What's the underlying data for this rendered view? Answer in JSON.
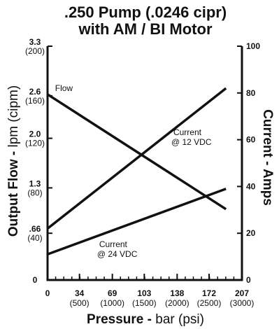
{
  "chart_data": {
    "type": "line",
    "title_line1": ".250 Pump (.0246 cipr)",
    "title_line2": "with AM / BI Motor",
    "xlabel_bold": "Pressure -",
    "xlabel_rest": " bar (psi)",
    "ylabel_left_bold": "Output Flow -",
    "ylabel_left_rest": " lpm (cipm)",
    "ylabel_right": "Current - Amps",
    "x_ticks": [
      {
        "value": 0,
        "bar": "0",
        "psi": ""
      },
      {
        "value": 34,
        "bar": "34",
        "psi": "(500)"
      },
      {
        "value": 69,
        "bar": "69",
        "psi": "(1000)"
      },
      {
        "value": 103,
        "bar": "103",
        "psi": "(1500)"
      },
      {
        "value": 138,
        "bar": "138",
        "psi": "(2000)"
      },
      {
        "value": 172,
        "bar": "172",
        "psi": "(2500)"
      },
      {
        "value": 207,
        "bar": "207",
        "psi": "(3000)"
      }
    ],
    "y_left_ticks": [
      {
        "value": 0,
        "lpm": "0",
        "cipm": ""
      },
      {
        "value": 0.66,
        "lpm": ".66",
        "cipm": "(40)"
      },
      {
        "value": 1.3,
        "lpm": "1.3",
        "cipm": "(80)"
      },
      {
        "value": 2.0,
        "lpm": "2.0",
        "cipm": "(120)"
      },
      {
        "value": 2.6,
        "lpm": "2.6",
        "cipm": "(160)"
      },
      {
        "value": 3.3,
        "lpm": "3.3",
        "cipm": "(200)"
      }
    ],
    "y_right_ticks": [
      0,
      20,
      40,
      60,
      80,
      100
    ],
    "xlim": [
      0,
      207
    ],
    "ylim_left": [
      0,
      3.3
    ],
    "ylim_right": [
      0,
      100
    ],
    "series": [
      {
        "name": "Flow",
        "axis": "left",
        "points": [
          [
            0,
            2.62
          ],
          [
            190,
            1.0
          ]
        ],
        "label_lines": [
          "Flow"
        ],
        "label_at": [
          8,
          2.67
        ]
      },
      {
        "name": "Current @ 12 VDC",
        "axis": "right",
        "points": [
          [
            0,
            22
          ],
          [
            190,
            82
          ]
        ],
        "label_lines": [
          "Current",
          "@ 12 VDC"
        ],
        "label_at": [
          134,
          62
        ]
      },
      {
        "name": "Current @ 24 VDC",
        "axis": "right",
        "points": [
          [
            0,
            11
          ],
          [
            190,
            39
          ]
        ],
        "label_lines": [
          "Current",
          "@ 24 VDC"
        ],
        "label_at": [
          55,
          14
        ]
      }
    ]
  }
}
